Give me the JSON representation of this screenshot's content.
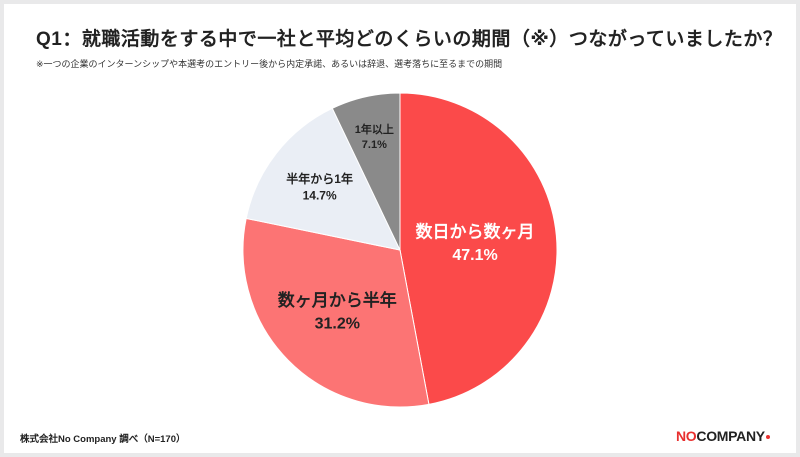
{
  "header": {
    "title": "Q1：就職活動をする中で一社と平均どのくらいの期間（※）つながっていましたか？",
    "note": "※一つの企業のインターンシップや本選考のエントリー後から内定承諾、あるいは辞退、選考落ちに至るまでの期間"
  },
  "footer": {
    "source": "株式会社No Company 調べ（N=170）",
    "brand_accent": "NO",
    "brand_rest": "COMPANY"
  },
  "colors": {
    "slice1": "#fb4a4a",
    "slice2": "#fc7474",
    "slice3": "#eaeef5",
    "slice4": "#8a8a8a",
    "label_light": "#ffffff",
    "label_dark": "#222222",
    "brand_red": "#e8302f"
  },
  "chart_data": {
    "type": "pie",
    "categories": [
      "数日から数ヶ月",
      "数ヶ月から半年",
      "半年から1年",
      "1年以上"
    ],
    "values": [
      47.1,
      31.2,
      14.7,
      7.1
    ],
    "labels": [
      "47.1%",
      "31.2%",
      "14.7%",
      "7.1%"
    ],
    "start": "12 o'clock",
    "direction": "clockwise"
  }
}
